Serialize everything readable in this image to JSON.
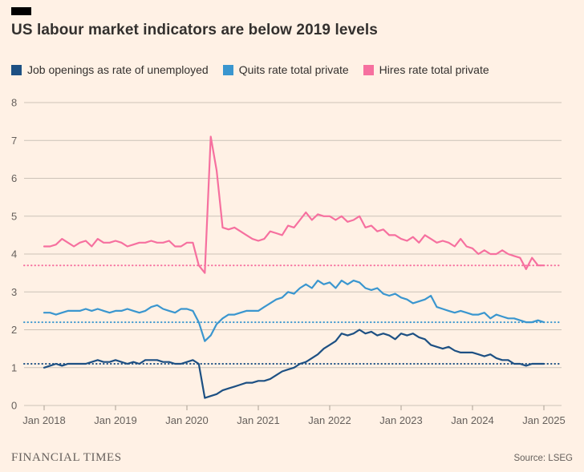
{
  "page": {
    "background": "#fff1e5",
    "title": "US labour market indicators are below 2019 levels",
    "footer": {
      "brand": "FINANCIAL TIMES",
      "source": "Source: LSEG"
    }
  },
  "chart_data": {
    "type": "line",
    "title": "US labour market indicators are below 2019 levels",
    "xlabel": "",
    "ylabel": "",
    "ylim": [
      0,
      8
    ],
    "y_ticks": [
      0,
      1,
      2,
      3,
      4,
      5,
      6,
      7,
      8
    ],
    "x_tick_labels": [
      "Jan 2018",
      "Jan 2019",
      "Jan 2020",
      "Jan 2021",
      "Jan 2022",
      "Jan 2023",
      "Jan 2024",
      "Jan 2025"
    ],
    "x_frequency": "monthly",
    "grid": true,
    "grid_color": "#ccc3b8",
    "tick_color": "#a99f94",
    "axis_text_color": "#66605c",
    "legend_position": "top",
    "reference_lines_meaning": "2019 levels (dotted)",
    "series": [
      {
        "name": "Job openings as rate of unemployed",
        "color": "#1d5083",
        "level_2019": 1.1,
        "values": [
          1.0,
          1.05,
          1.1,
          1.05,
          1.1,
          1.1,
          1.1,
          1.1,
          1.15,
          1.2,
          1.15,
          1.15,
          1.2,
          1.15,
          1.1,
          1.15,
          1.1,
          1.2,
          1.2,
          1.2,
          1.15,
          1.15,
          1.1,
          1.1,
          1.15,
          1.2,
          1.1,
          0.2,
          0.25,
          0.3,
          0.4,
          0.45,
          0.5,
          0.55,
          0.6,
          0.6,
          0.65,
          0.65,
          0.7,
          0.8,
          0.9,
          0.95,
          1.0,
          1.1,
          1.15,
          1.25,
          1.35,
          1.5,
          1.6,
          1.7,
          1.9,
          1.85,
          1.9,
          2.0,
          1.9,
          1.95,
          1.85,
          1.9,
          1.85,
          1.75,
          1.9,
          1.85,
          1.9,
          1.8,
          1.75,
          1.6,
          1.55,
          1.5,
          1.55,
          1.45,
          1.4,
          1.4,
          1.4,
          1.35,
          1.3,
          1.35,
          1.25,
          1.2,
          1.2,
          1.1,
          1.1,
          1.05,
          1.1,
          1.1,
          1.1
        ]
      },
      {
        "name": "Quits rate total private",
        "color": "#3a96cf",
        "level_2019": 2.2,
        "values": [
          2.45,
          2.45,
          2.4,
          2.45,
          2.5,
          2.5,
          2.5,
          2.55,
          2.5,
          2.55,
          2.5,
          2.45,
          2.5,
          2.5,
          2.55,
          2.5,
          2.45,
          2.5,
          2.6,
          2.65,
          2.55,
          2.5,
          2.45,
          2.55,
          2.55,
          2.5,
          2.2,
          1.7,
          1.85,
          2.15,
          2.3,
          2.4,
          2.4,
          2.45,
          2.5,
          2.5,
          2.5,
          2.6,
          2.7,
          2.8,
          2.85,
          3.0,
          2.95,
          3.1,
          3.2,
          3.1,
          3.3,
          3.2,
          3.25,
          3.1,
          3.3,
          3.2,
          3.3,
          3.25,
          3.1,
          3.05,
          3.1,
          2.95,
          2.9,
          2.95,
          2.85,
          2.8,
          2.7,
          2.75,
          2.8,
          2.9,
          2.6,
          2.55,
          2.5,
          2.45,
          2.5,
          2.45,
          2.4,
          2.4,
          2.45,
          2.3,
          2.4,
          2.35,
          2.3,
          2.3,
          2.25,
          2.2,
          2.2,
          2.25,
          2.2
        ]
      },
      {
        "name": "Hires rate total private",
        "color": "#f6709f",
        "level_2019": 3.7,
        "values": [
          4.2,
          4.2,
          4.25,
          4.4,
          4.3,
          4.2,
          4.3,
          4.35,
          4.2,
          4.4,
          4.3,
          4.3,
          4.35,
          4.3,
          4.2,
          4.25,
          4.3,
          4.3,
          4.35,
          4.3,
          4.3,
          4.35,
          4.2,
          4.2,
          4.3,
          4.3,
          3.7,
          3.5,
          7.1,
          6.2,
          4.7,
          4.65,
          4.7,
          4.6,
          4.5,
          4.4,
          4.35,
          4.4,
          4.6,
          4.55,
          4.5,
          4.75,
          4.7,
          4.9,
          5.1,
          4.9,
          5.05,
          5.0,
          5.0,
          4.9,
          5.0,
          4.85,
          4.9,
          5.0,
          4.7,
          4.75,
          4.6,
          4.65,
          4.5,
          4.5,
          4.4,
          4.35,
          4.45,
          4.3,
          4.5,
          4.4,
          4.3,
          4.35,
          4.3,
          4.2,
          4.4,
          4.2,
          4.15,
          4.0,
          4.1,
          4.0,
          4.0,
          4.1,
          4.0,
          3.95,
          3.9,
          3.6,
          3.9,
          3.7,
          3.7
        ]
      }
    ]
  }
}
